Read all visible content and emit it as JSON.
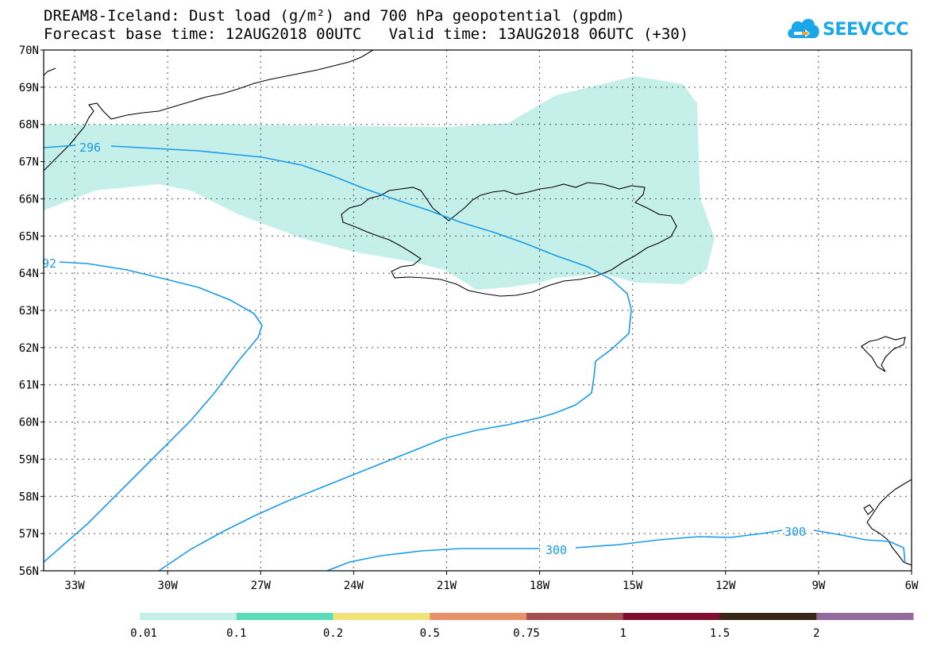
{
  "title": {
    "line1": "DREAM8-Iceland: Dust load (g/m²) and 700 hPa geopotential (gpdm)",
    "line2": "Forecast base time: 12AUG2018 00UTC   Valid time: 13AUG2018 06UTC (+30)"
  },
  "logo": {
    "text": "SEEVCCC",
    "icon": "cloud-icon",
    "color": "#1aa6e8"
  },
  "map": {
    "lat_labels": [
      "70N",
      "69N",
      "68N",
      "67N",
      "66N",
      "65N",
      "64N",
      "63N",
      "62N",
      "61N",
      "60N",
      "59N",
      "58N",
      "57N",
      "56N"
    ],
    "lon_labels": [
      "33W",
      "30W",
      "27W",
      "24W",
      "21W",
      "18W",
      "15W",
      "12W",
      "9W",
      "6W"
    ],
    "lon_range": [
      -34,
      -6
    ],
    "lat_range": [
      56,
      70
    ],
    "gridlines": "dotted",
    "contour_labels": [
      "296",
      "92",
      "300",
      "300"
    ],
    "contour_color": "#1a9be8",
    "dust_color": "#c5f0ea",
    "coastline_color": "#000000"
  },
  "colorbar": {
    "labels": [
      "0.01",
      "0.1",
      "0.2",
      "0.5",
      "0.75",
      "1",
      "1.5",
      "2"
    ],
    "colors": [
      "#c5f0ea",
      "#5cdcb6",
      "#f2e27a",
      "#e8906a",
      "#a3504c",
      "#7e0f32",
      "#3a2616",
      "#936a9c"
    ]
  }
}
